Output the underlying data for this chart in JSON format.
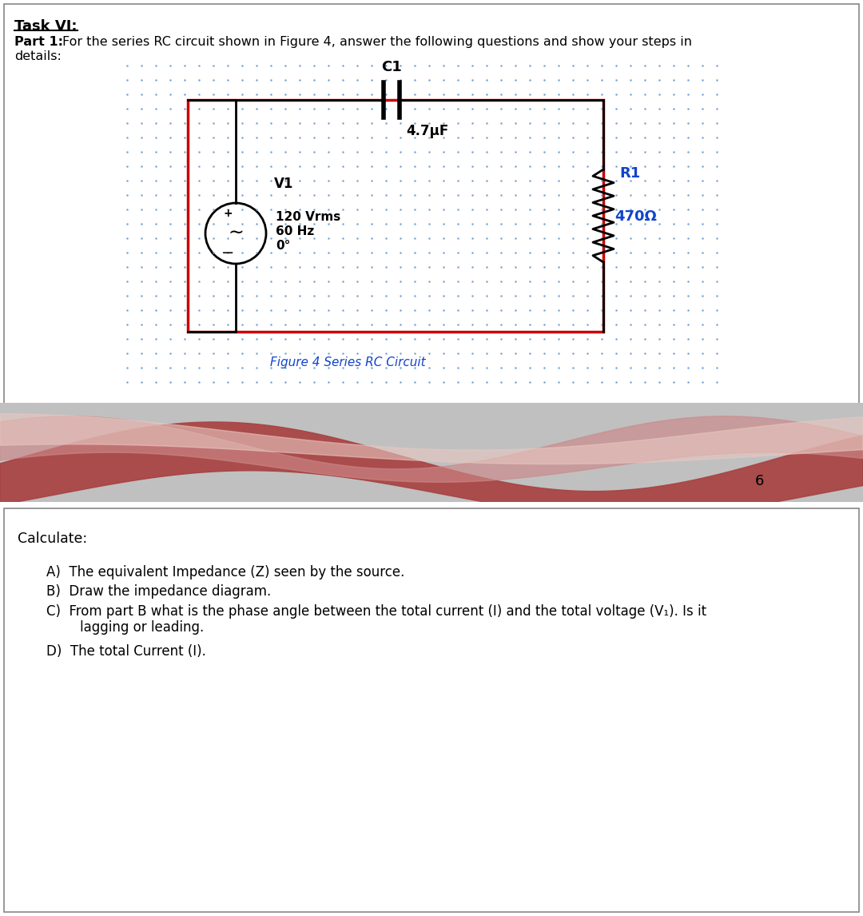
{
  "title_text": "Task VI:",
  "c1_label": "C1",
  "c1_value": "4.7μF",
  "r1_label": "R1",
  "r1_value": "470Ω",
  "v1_label": "V1",
  "v1_params": [
    "120 Vrms",
    "60 Hz",
    "0°"
  ],
  "figure_caption": "Figure 4 Series RC Circuit",
  "circuit_rect_color": "#cc0000",
  "dot_color": "#6699cc",
  "blue_text_color": "#1144cc",
  "calculate_text": "Calculate:",
  "q_a": "A)  The equivalent Impedance (Z) seen by the source.",
  "q_b": "B)  Draw the impedance diagram.",
  "q_c1": "C)  From part B what is the phase angle between the total current (I) and the total voltage (V₁). Is it",
  "q_c2": "        lagging or leading.",
  "q_d": "D)  The total Current (I).",
  "page_number": "6",
  "bg_color": "#ffffff"
}
